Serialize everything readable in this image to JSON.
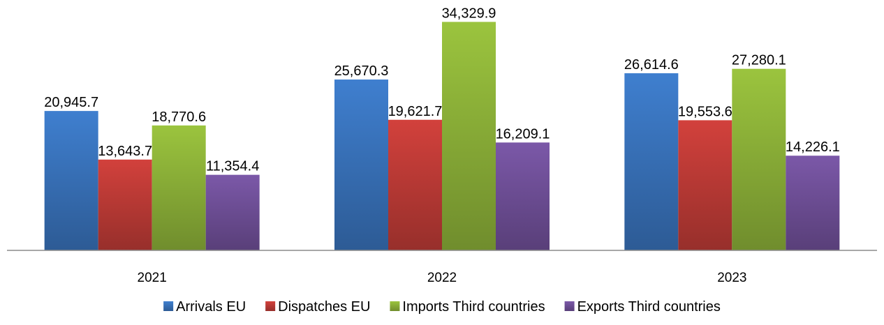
{
  "chart_data": {
    "type": "bar",
    "categories": [
      "2021",
      "2022",
      "2023"
    ],
    "series": [
      {
        "name": "Arrivals EU",
        "values": [
          20945.7,
          25670.3,
          26614.6
        ],
        "labels": [
          "20,945.7",
          "25,670.3",
          "26,614.6"
        ],
        "color": "#3f7fcf"
      },
      {
        "name": "Dispatches EU",
        "values": [
          13643.7,
          19621.7,
          19553.6
        ],
        "labels": [
          "13,643.7",
          "19,621.7",
          "19,553.6"
        ],
        "color": "#d2413c"
      },
      {
        "name": "Imports Third countries",
        "values": [
          18770.6,
          34329.9,
          27280.1
        ],
        "labels": [
          "18,770.6",
          "34,329.9",
          "27,280.1"
        ],
        "color": "#9bc43e"
      },
      {
        "name": "Exports Third countries",
        "values": [
          11354.4,
          16209.1,
          14226.1
        ],
        "labels": [
          "11,354.4",
          "16,209.1",
          "14,226.1"
        ],
        "color": "#7b58a8"
      }
    ],
    "ylim": [
      0,
      35000
    ],
    "grid": false,
    "legend_position": "bottom",
    "title": "",
    "xlabel": "",
    "ylabel": ""
  }
}
